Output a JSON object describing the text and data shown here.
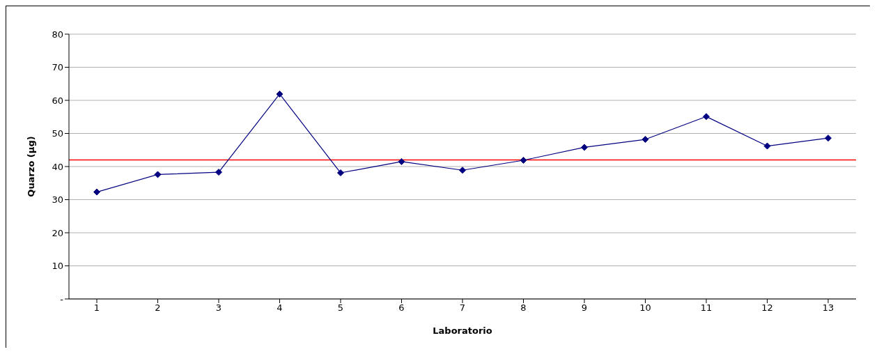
{
  "chart_data": {
    "type": "line",
    "xlabel": "Laboratorio",
    "ylabel": "Quarzo (µg)",
    "categories": [
      "1",
      "2",
      "3",
      "4",
      "5",
      "6",
      "7",
      "8",
      "9",
      "10",
      "11",
      "12",
      "13"
    ],
    "series": [
      {
        "color": "#000080",
        "values": [
          32.3,
          37.6,
          38.3,
          61.9,
          38.1,
          41.5,
          38.9,
          41.9,
          45.8,
          48.2,
          55.1,
          46.2,
          48.6
        ]
      }
    ],
    "ylim": [
      0,
      80
    ],
    "yticks": [
      {
        "value": 0,
        "label": "-"
      },
      10,
      20,
      30,
      40,
      50,
      60,
      70,
      80
    ],
    "ref_lines": [
      {
        "axis": "y",
        "value": 42,
        "color": "#ff0000"
      }
    ],
    "grid": "y",
    "marker": "diamond",
    "line_style": "solid"
  }
}
